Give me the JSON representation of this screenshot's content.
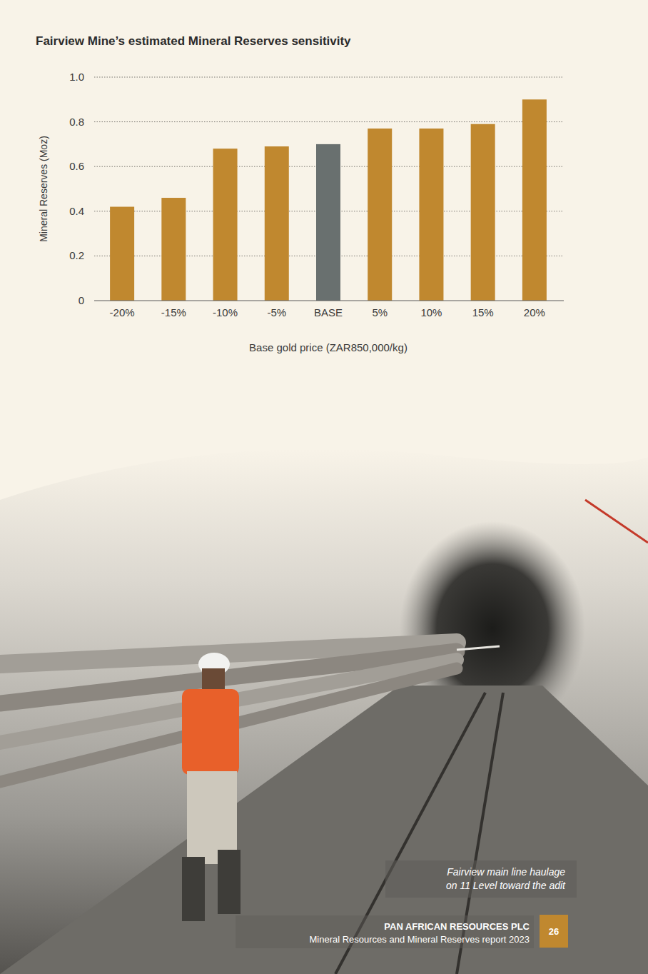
{
  "chart_data": {
    "type": "bar",
    "title": "Fairview Mine’s estimated Mineral Reserves sensitivity",
    "x_label": "Base gold price (ZAR850,000/kg)",
    "y_label": "Mineral Reserves (Moz)",
    "categories": [
      "-20%",
      "-15%",
      "-10%",
      "-5%",
      "BASE",
      "5%",
      "10%",
      "15%",
      "20%"
    ],
    "values": [
      0.42,
      0.46,
      0.68,
      0.69,
      0.7,
      0.77,
      0.77,
      0.79,
      0.9
    ],
    "colors": [
      "#c0882f",
      "#c0882f",
      "#c0882f",
      "#c0882f",
      "#69706f",
      "#c0882f",
      "#c0882f",
      "#c0882f",
      "#c0882f"
    ],
    "ylim": [
      0,
      1
    ],
    "yticks": [
      0,
      0.2,
      0.4,
      0.6,
      0.8,
      {
        "value": 1,
        "label": "1.0"
      }
    ],
    "grid": true
  },
  "caption": [
    "Fairview main line haulage",
    "on 11 Level toward the adit"
  ],
  "footer": {
    "company": "PAN AFRICAN RESOURCES PLC",
    "report": "Mineral Resources and Mineral Reserves report 2023",
    "page": 26
  }
}
